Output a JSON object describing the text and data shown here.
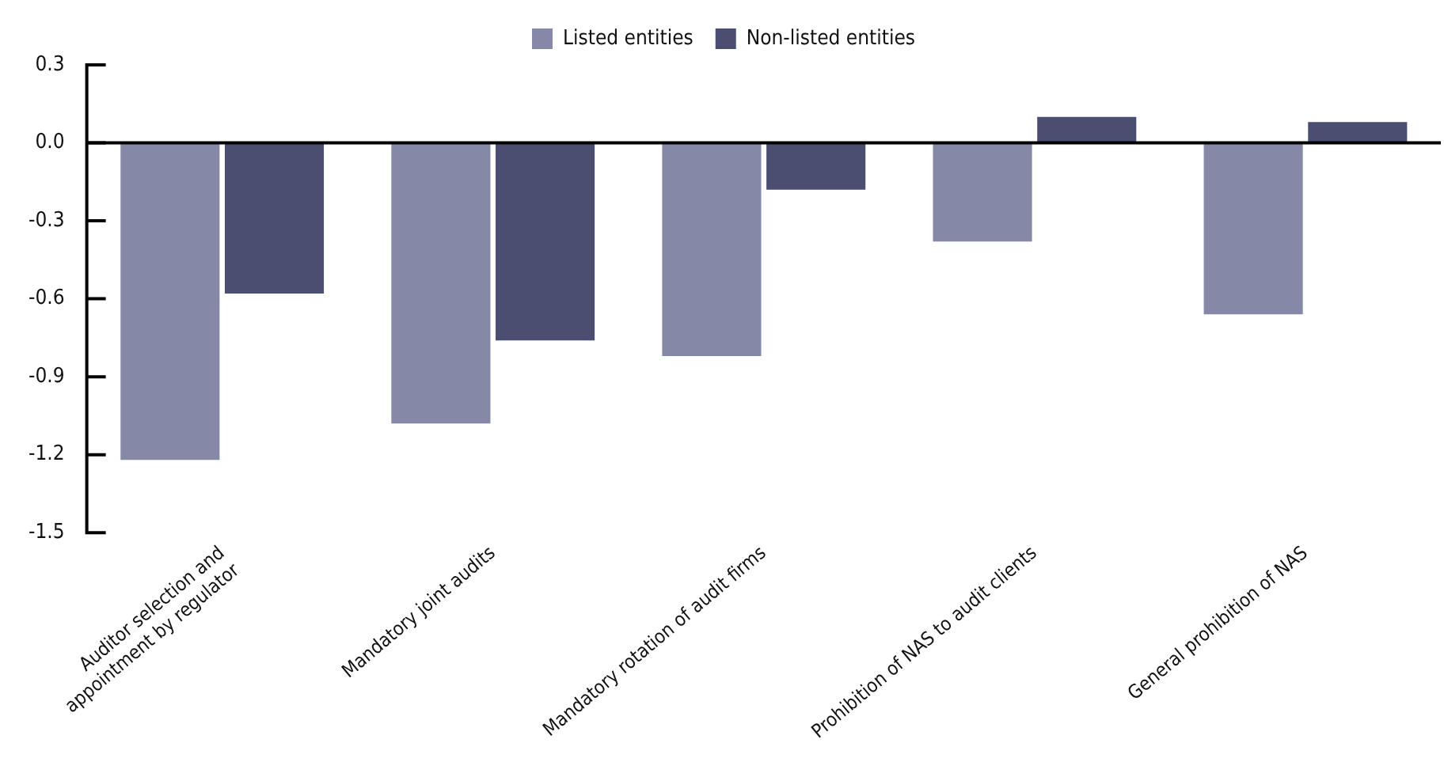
{
  "chart_data": {
    "type": "bar",
    "categories": [
      "Auditor selection and\nappointment by regulator",
      "Mandatory joint audits",
      "Mandatory rotation of audit firms",
      "Prohibition of NAS to audit clients",
      "General prohibition of NAS"
    ],
    "series": [
      {
        "name": "Listed entities",
        "color": "#8588a6",
        "values": [
          -1.22,
          -1.08,
          -0.82,
          -0.38,
          -0.66
        ]
      },
      {
        "name": "Non-listed entities",
        "color": "#4a4e70",
        "values": [
          -0.58,
          -0.76,
          -0.18,
          0.1,
          0.08
        ]
      }
    ],
    "ylim": [
      -1.5,
      0.3
    ],
    "yticks": [
      {
        "value": 0.3,
        "label": "0.3"
      },
      {
        "value": 0.0,
        "label": "0.0"
      },
      {
        "value": -0.3,
        "label": "-0.3"
      },
      {
        "value": -0.6,
        "label": "-0.6"
      },
      {
        "value": -0.9,
        "label": "-0.9"
      },
      {
        "value": -1.2,
        "label": "-1.2"
      },
      {
        "value": -1.5,
        "label": "-1.5"
      }
    ],
    "ref_lines": [
      {
        "axis": "y",
        "value": 0,
        "color": "#000000",
        "line_style": "solid"
      }
    ],
    "grid": false,
    "legend": "top"
  }
}
